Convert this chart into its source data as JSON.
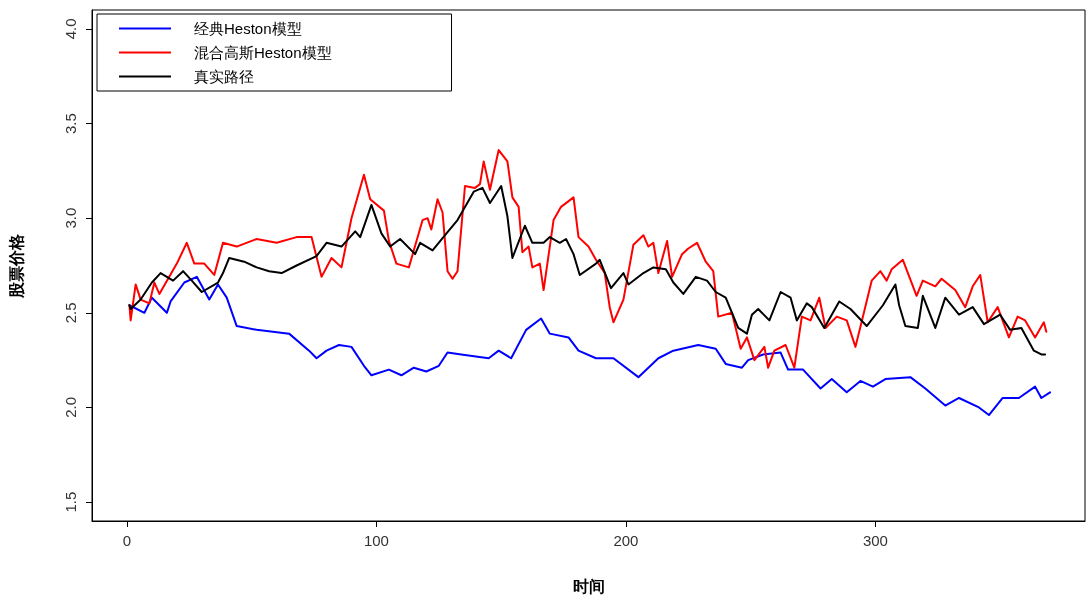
{
  "chart_data": {
    "type": "line",
    "xlabel": "时间",
    "ylabel": "股票价格",
    "xlim": [
      -14,
      384
    ],
    "ylim": [
      1.4,
      4.1
    ],
    "xticks": [
      0,
      100,
      200,
      300
    ],
    "yticks": [
      {
        "value": 1.5,
        "label": "1.5"
      },
      {
        "value": 2,
        "label": "2.0"
      },
      {
        "value": 2.5,
        "label": "2.5"
      },
      {
        "value": 3,
        "label": "3.0"
      },
      {
        "value": 3.5,
        "label": "3.5"
      },
      {
        "value": 4,
        "label": "4.0"
      }
    ],
    "grid": false,
    "legend": "top left",
    "marker": "none",
    "line_style": "solid",
    "series": [
      {
        "name": "经典Heston模型",
        "color": "#0000ff",
        "x": [
          1,
          7,
          10,
          16,
          17.5,
          23,
          28,
          33,
          36.5,
          40,
          44,
          52,
          65,
          73,
          76,
          80,
          85,
          90,
          95,
          98,
          105,
          110,
          115,
          120,
          125,
          128.5,
          134,
          145,
          149,
          154,
          160,
          166,
          169.5,
          177,
          181,
          188,
          195,
          205,
          213,
          219,
          229,
          236,
          240,
          246.5,
          249,
          255,
          262,
          265,
          271,
          278,
          282.5,
          288.5,
          294,
          299,
          304,
          314,
          320,
          328,
          333.5,
          341.5,
          345.5,
          351,
          357.5,
          364,
          366.5,
          370
        ],
        "values": [
          2.54,
          2.5,
          2.58,
          2.5,
          2.56,
          2.66,
          2.69,
          2.57,
          2.65,
          2.58,
          2.43,
          2.41,
          2.39,
          2.3,
          2.26,
          2.3,
          2.33,
          2.32,
          2.22,
          2.17,
          2.2,
          2.17,
          2.21,
          2.19,
          2.22,
          2.29,
          2.28,
          2.26,
          2.3,
          2.26,
          2.41,
          2.47,
          2.39,
          2.37,
          2.3,
          2.26,
          2.26,
          2.16,
          2.26,
          2.3,
          2.33,
          2.31,
          2.23,
          2.21,
          2.25,
          2.28,
          2.29,
          2.2,
          2.2,
          2.1,
          2.15,
          2.08,
          2.14,
          2.11,
          2.15,
          2.16,
          2.1,
          2.01,
          2.05,
          2,
          1.96,
          2.05,
          2.05,
          2.11,
          2.05,
          2.08
        ]
      },
      {
        "name": "混合高斯Heston模型",
        "color": "#ff0000",
        "x": [
          1,
          1.5,
          3.5,
          5.5,
          9,
          11,
          13,
          20,
          24,
          27,
          31,
          35,
          38.5,
          44,
          52,
          60,
          68,
          74,
          78,
          82,
          86,
          90,
          95,
          97.5,
          103,
          105,
          108,
          113,
          118.5,
          120.5,
          122,
          124.5,
          126.5,
          128.5,
          130.5,
          132.5,
          135.5,
          139.5,
          141.5,
          143,
          145.5,
          149,
          152.5,
          154.5,
          157,
          158.5,
          161,
          162.5,
          165.5,
          167,
          171,
          174,
          179,
          181,
          185,
          188,
          191.5,
          193.5,
          195,
          199,
          203,
          207,
          209,
          211,
          213,
          216.5,
          218.5,
          222.5,
          225,
          228.5,
          232,
          235,
          237,
          242.5,
          246,
          248.5,
          251.5,
          255.5,
          257,
          259.5,
          264,
          267.5,
          270.5,
          274,
          277.5,
          280,
          284.5,
          288.5,
          292,
          295,
          298.5,
          302,
          304.5,
          306.5,
          311,
          316.5,
          319,
          324,
          326.5,
          332,
          336,
          339,
          342,
          345,
          349,
          353.5,
          357,
          360,
          364,
          367.5,
          368.5
        ],
        "values": [
          2.54,
          2.46,
          2.65,
          2.57,
          2.55,
          2.66,
          2.6,
          2.76,
          2.87,
          2.76,
          2.76,
          2.7,
          2.87,
          2.85,
          2.89,
          2.87,
          2.9,
          2.9,
          2.69,
          2.79,
          2.74,
          3,
          3.23,
          3.1,
          3.04,
          2.88,
          2.76,
          2.74,
          2.99,
          3,
          2.94,
          3.1,
          3.03,
          2.72,
          2.68,
          2.72,
          3.17,
          3.16,
          3.18,
          3.3,
          3.15,
          3.36,
          3.3,
          3.11,
          3.06,
          2.82,
          2.85,
          2.74,
          2.76,
          2.62,
          2.99,
          3.06,
          3.11,
          2.9,
          2.85,
          2.78,
          2.71,
          2.53,
          2.45,
          2.57,
          2.86,
          2.91,
          2.85,
          2.87,
          2.71,
          2.88,
          2.69,
          2.81,
          2.84,
          2.87,
          2.77,
          2.72,
          2.48,
          2.5,
          2.31,
          2.37,
          2.25,
          2.32,
          2.21,
          2.3,
          2.33,
          2.21,
          2.48,
          2.46,
          2.58,
          2.42,
          2.48,
          2.46,
          2.32,
          2.48,
          2.67,
          2.72,
          2.67,
          2.73,
          2.78,
          2.59,
          2.67,
          2.64,
          2.68,
          2.62,
          2.53,
          2.64,
          2.7,
          2.45,
          2.53,
          2.37,
          2.48,
          2.46,
          2.37,
          2.45,
          2.4
        ]
      },
      {
        "name": "真实路径",
        "color": "#000000",
        "x": [
          1,
          1.5,
          5.5,
          10,
          13.5,
          18.5,
          22.5,
          26,
          30,
          36.5,
          38.5,
          41,
          47,
          52,
          57,
          62,
          68,
          76,
          80,
          86,
          91.5,
          93.5,
          98,
          102,
          105.5,
          109.5,
          115.5,
          117.5,
          122.5,
          127.5,
          132.5,
          139,
          142.5,
          145.5,
          150,
          152.5,
          154.5,
          159.5,
          162.5,
          167,
          169.5,
          173.5,
          176,
          179,
          181.5,
          188,
          189.5,
          194,
          199,
          201,
          207,
          211,
          216,
          219,
          223,
          228,
          232.5,
          236,
          240,
          245,
          248.5,
          250.5,
          253,
          257.5,
          262,
          266,
          268.5,
          272.5,
          274.5,
          279.5,
          285.5,
          290,
          296.5,
          303,
          308,
          309.5,
          312,
          317,
          319,
          324,
          328,
          333.5,
          339,
          343.5,
          350,
          354,
          358.5,
          363.5,
          366.5,
          368
        ],
        "values": [
          2.54,
          2.52,
          2.57,
          2.66,
          2.71,
          2.67,
          2.72,
          2.67,
          2.61,
          2.66,
          2.71,
          2.79,
          2.77,
          2.74,
          2.72,
          2.71,
          2.75,
          2.8,
          2.87,
          2.85,
          2.93,
          2.9,
          3.07,
          2.92,
          2.85,
          2.89,
          2.81,
          2.87,
          2.83,
          2.91,
          2.99,
          3.14,
          3.16,
          3.08,
          3.17,
          3.01,
          2.79,
          2.96,
          2.87,
          2.87,
          2.9,
          2.87,
          2.89,
          2.81,
          2.7,
          2.76,
          2.78,
          2.63,
          2.71,
          2.65,
          2.71,
          2.74,
          2.73,
          2.66,
          2.6,
          2.69,
          2.67,
          2.61,
          2.58,
          2.42,
          2.39,
          2.49,
          2.52,
          2.46,
          2.61,
          2.58,
          2.46,
          2.55,
          2.53,
          2.42,
          2.56,
          2.52,
          2.43,
          2.54,
          2.65,
          2.54,
          2.43,
          2.42,
          2.59,
          2.42,
          2.58,
          2.49,
          2.53,
          2.44,
          2.49,
          2.41,
          2.42,
          2.3,
          2.28,
          2.28
        ]
      }
    ]
  }
}
